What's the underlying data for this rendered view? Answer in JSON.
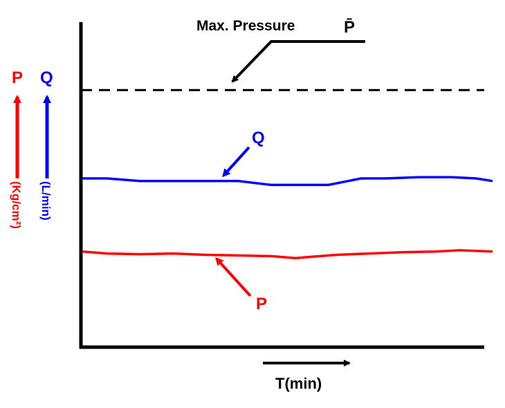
{
  "chart_data": {
    "type": "line",
    "title": "",
    "xlabel": "T(min)",
    "ylabel_left": {
      "symbol": "P",
      "unit": "(Kg/cm²)",
      "color": "#ff0000"
    },
    "ylabel_right": {
      "symbol": "Q",
      "unit": "(L/min)",
      "color": "#0000ff"
    },
    "max_pressure": {
      "label": "Max. Pressure",
      "symbol": "P̄",
      "value": 0.79,
      "color": "#000000",
      "style": "dashed"
    },
    "x_range": [
      0,
      1
    ],
    "y_range": [
      0,
      1
    ],
    "series": [
      {
        "name": "Q",
        "color": "#0000ff",
        "x": [
          0,
          0.06,
          0.14,
          0.22,
          0.3,
          0.38,
          0.46,
          0.52,
          0.6,
          0.68,
          0.74,
          0.82,
          0.9,
          0.96,
          1.0
        ],
        "y": [
          0.517,
          0.517,
          0.509,
          0.509,
          0.509,
          0.509,
          0.497,
          0.497,
          0.497,
          0.517,
          0.517,
          0.521,
          0.521,
          0.517,
          0.509
        ]
      },
      {
        "name": "P",
        "color": "#ff0000",
        "x": [
          0,
          0.06,
          0.14,
          0.22,
          0.3,
          0.38,
          0.46,
          0.52,
          0.56,
          0.62,
          0.7,
          0.78,
          0.86,
          0.92,
          1.0
        ],
        "y": [
          0.291,
          0.285,
          0.283,
          0.285,
          0.281,
          0.279,
          0.277,
          0.271,
          0.275,
          0.281,
          0.285,
          0.289,
          0.291,
          0.295,
          0.291
        ]
      }
    ],
    "annotations": [
      {
        "text": "Q",
        "color": "#0000ff"
      },
      {
        "text": "P",
        "color": "#ff0000"
      }
    ]
  }
}
